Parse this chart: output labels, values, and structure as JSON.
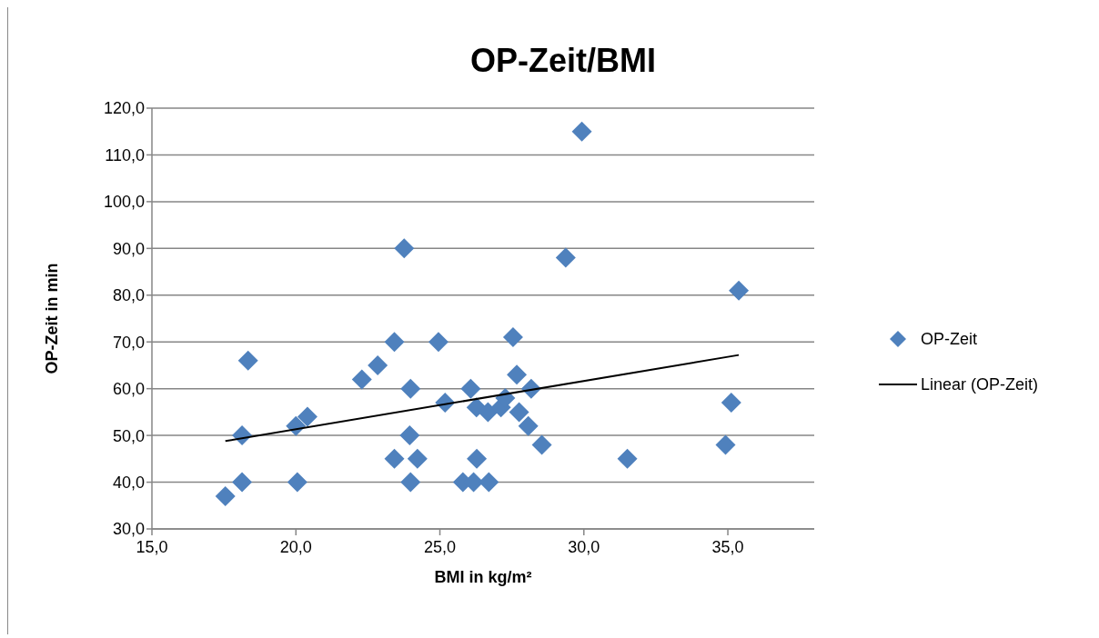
{
  "chart_data": {
    "type": "scatter",
    "title": "OP-Zeit/BMI",
    "xlabel": "BMI in kg/m²",
    "ylabel": "OP-Zeit in min",
    "xlim": [
      15,
      38
    ],
    "xticks": [
      {
        "value": 15,
        "label": "15,0"
      },
      {
        "value": 20,
        "label": "20,0"
      },
      {
        "value": 25,
        "label": "25,0"
      },
      {
        "value": 30,
        "label": "30,0"
      },
      {
        "value": 35,
        "label": "35,0"
      }
    ],
    "ylim": [
      30,
      120
    ],
    "yticks": [
      {
        "value": 30,
        "label": "30,0"
      },
      {
        "value": 40,
        "label": "40,0"
      },
      {
        "value": 50,
        "label": "50,0"
      },
      {
        "value": 60,
        "label": "60,0"
      },
      {
        "value": 70,
        "label": "70,0"
      },
      {
        "value": 80,
        "label": "80,0"
      },
      {
        "value": 90,
        "label": "90,0"
      },
      {
        "value": 100,
        "label": "100,0"
      },
      {
        "value": 110,
        "label": "110,0"
      },
      {
        "value": 120,
        "label": "120,0"
      }
    ],
    "grid": "y",
    "legend": "right",
    "marker": "diamond",
    "series": [
      {
        "name": "OP-Zeit",
        "color": "#4f81bd",
        "x": [
          17.55,
          18.34,
          18.13,
          18.13,
          20.0,
          20.4,
          20.05,
          22.29,
          22.84,
          23.42,
          23.76,
          23.98,
          23.95,
          23.42,
          24.22,
          23.98,
          24.95,
          25.18,
          26.07,
          25.8,
          26.17,
          26.28,
          26.27,
          26.7,
          26.67,
          27.12,
          27.27,
          27.54,
          27.67,
          28.17,
          27.75,
          28.07,
          28.54,
          29.37,
          29.93,
          31.51,
          34.92,
          35.12,
          35.38
        ],
        "values": [
          37,
          66,
          50,
          40,
          52,
          54,
          40,
          62,
          65,
          70,
          90,
          60,
          50,
          45,
          45,
          40,
          70,
          57,
          60,
          40,
          40,
          45,
          56,
          40,
          55,
          56,
          58,
          71,
          63,
          60,
          55,
          52,
          48,
          88,
          115,
          45,
          48,
          57,
          81
        ]
      },
      {
        "name": "Linear (OP-Zeit)",
        "type": "line",
        "marker": "none",
        "color": "#000000",
        "x": [
          17.55,
          35.38
        ],
        "values": [
          48.8,
          67.2
        ]
      }
    ]
  }
}
